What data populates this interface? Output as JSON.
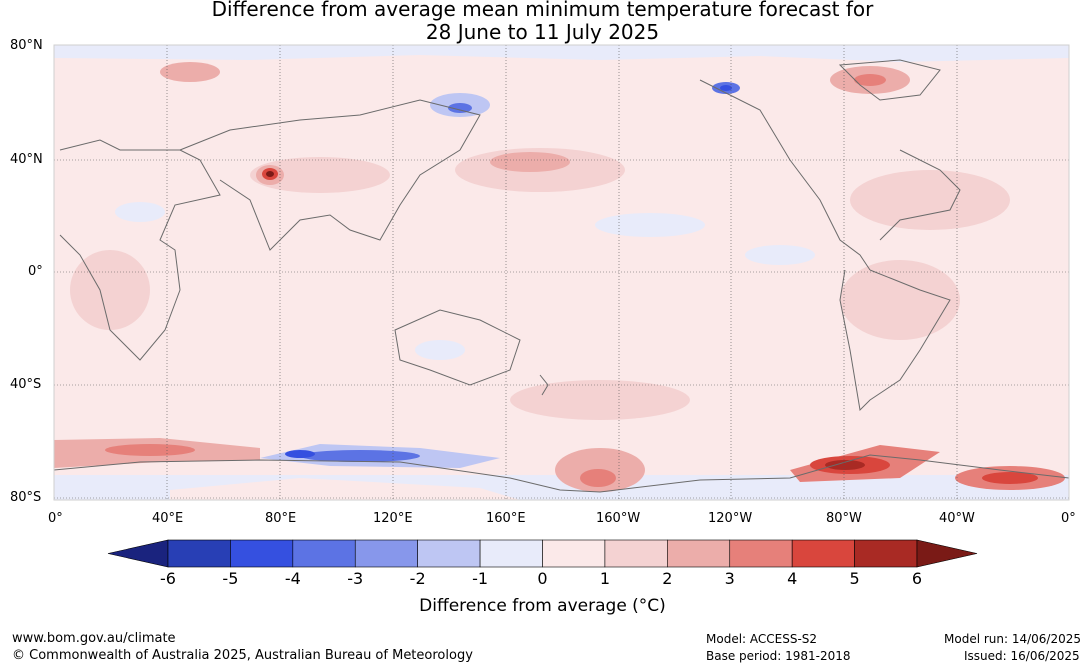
{
  "title": {
    "line1": "Difference from average mean minimum temperature forecast for",
    "line2": "28 June to 11 July 2025"
  },
  "lat_labels": [
    "80°N",
    "40°N",
    "0°",
    "40°S",
    "80°S"
  ],
  "lon_labels": [
    "0°",
    "40°E",
    "80°E",
    "120°E",
    "160°E",
    "160°W",
    "120°W",
    "80°W",
    "40°W",
    "0°"
  ],
  "colorbar": {
    "ticks": [
      "-6",
      "-5",
      "-4",
      "-3",
      "-2",
      "-1",
      "0",
      "1",
      "2",
      "3",
      "4",
      "5",
      "6"
    ],
    "colors": [
      "#1a237e",
      "#283fb5",
      "#3550e0",
      "#5c73e4",
      "#8797eb",
      "#bec6f3",
      "#e8ebfa",
      "#fbe9e9",
      "#f4d2d2",
      "#ecadaa",
      "#e6807a",
      "#d9463d",
      "#a92a24",
      "#7a1a16"
    ],
    "label": "Difference from average (°C)"
  },
  "footer": {
    "website": "www.bom.gov.au/climate",
    "copyright": "© Commonwealth of Australia 2025, Australian Bureau of Meteorology",
    "model": "Model: ACCESS-S2",
    "base_period": "Base period: 1981-2018",
    "model_run": "Model run: 14/06/2025",
    "issued": "Issued: 16/06/2025"
  }
}
